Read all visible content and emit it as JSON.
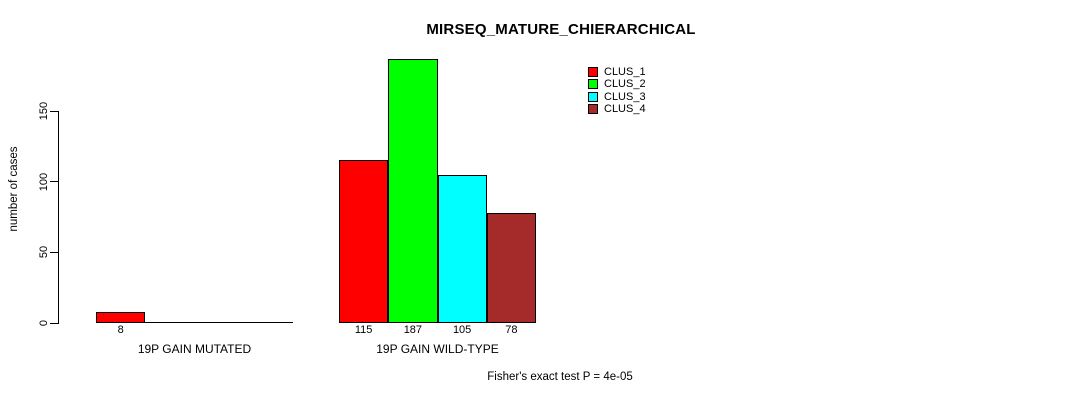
{
  "title": "MIRSEQ_MATURE_CHIERARCHICAL",
  "ylabel": "number of cases",
  "footer": "Fisher's exact test P = 4e-05",
  "legend": [
    {
      "label": "CLUS_1",
      "color": "#FF0000"
    },
    {
      "label": "CLUS_2",
      "color": "#00FF00"
    },
    {
      "label": "CLUS_3",
      "color": "#00FFFF"
    },
    {
      "label": "CLUS_4",
      "color": "#A52A2A"
    }
  ],
  "colors": {
    "background": "#FFFFFF",
    "axis": "#000000",
    "text": "#000000"
  },
  "chart_data": {
    "type": "bar",
    "title": "MIRSEQ_MATURE_CHIERARCHICAL",
    "xlabel": "",
    "ylabel": "number of cases",
    "categories": [
      "19P GAIN MUTATED",
      "19P GAIN WILD-TYPE"
    ],
    "series": [
      {
        "name": "CLUS_1",
        "color": "#FF0000",
        "values": [
          8,
          115
        ]
      },
      {
        "name": "CLUS_2",
        "color": "#00FF00",
        "values": [
          0,
          187
        ]
      },
      {
        "name": "CLUS_3",
        "color": "#00FFFF",
        "values": [
          0,
          105
        ]
      },
      {
        "name": "CLUS_4",
        "color": "#A52A2A",
        "values": [
          0,
          78
        ]
      }
    ],
    "bar_value_labels": [
      [
        "8",
        "",
        "",
        ""
      ],
      [
        "115",
        "187",
        "105",
        "78"
      ]
    ],
    "yticks": [
      0,
      50,
      100,
      150
    ],
    "ylim": [
      0,
      150
    ],
    "grid": false,
    "legend_position": "top-right",
    "legend_entries": [
      "CLUS_1",
      "CLUS_2",
      "CLUS_3",
      "CLUS_4"
    ],
    "annotation": "Fisher's exact test P = 4e-05"
  }
}
